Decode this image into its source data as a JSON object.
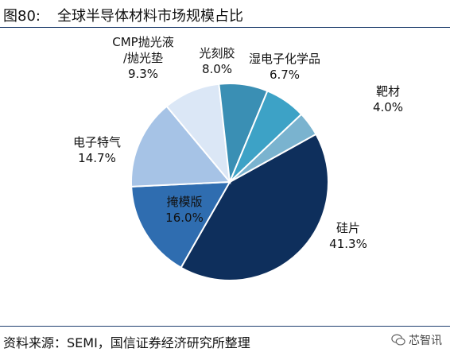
{
  "header": {
    "figure_label": "图80:",
    "title": "全球半导体材料市场规模占比"
  },
  "footer": {
    "source": "资料来源：SEMI，国信证券经济研究所整理",
    "watermark": "芯智讯"
  },
  "chart_data": {
    "type": "pie",
    "title": "",
    "slices": [
      {
        "label": "硅片",
        "value": 41.3,
        "display": "41.3%",
        "color": "#0e2f5c"
      },
      {
        "label": "掩模版",
        "value": 16.0,
        "display": "16.0%",
        "color": "#2f6db0"
      },
      {
        "label": "电子特气",
        "value": 14.7,
        "display": "14.7%",
        "color": "#a6c3e6"
      },
      {
        "label": "CMP抛光液/抛光垫",
        "label_lines": [
          "CMP抛光液",
          "/抛光垫"
        ],
        "value": 9.3,
        "display": "9.3%",
        "color": "#dbe7f6"
      },
      {
        "label": "光刻胶",
        "value": 8.0,
        "display": "8.0%",
        "color": "#3a8fb4"
      },
      {
        "label": "湿电子化学品",
        "value": 6.7,
        "display": "6.7%",
        "color": "#3da2c6"
      },
      {
        "label": "靶材",
        "value": 4.0,
        "display": "4.0%",
        "color": "#7ab3cf"
      }
    ]
  }
}
